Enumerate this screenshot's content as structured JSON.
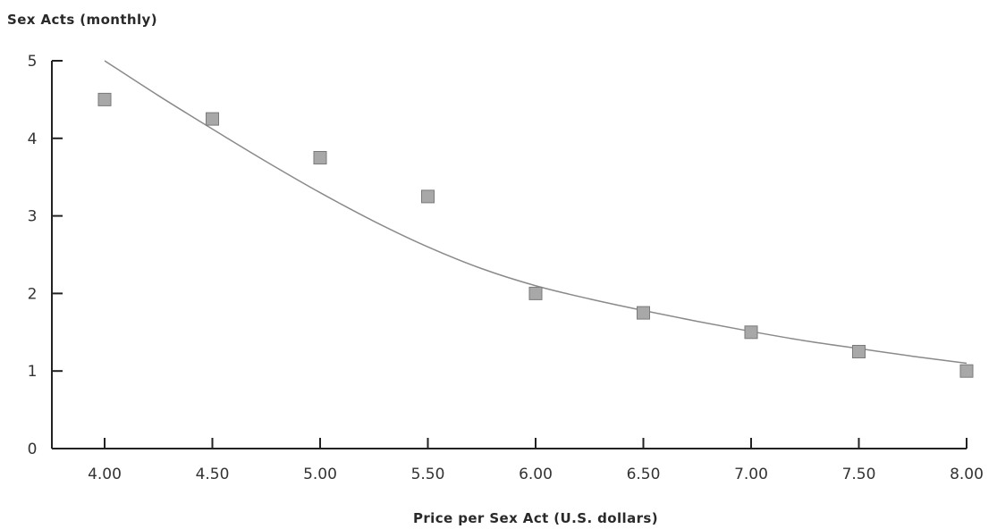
{
  "chart_data": {
    "type": "scatter",
    "title": "",
    "ylabel": "Sex Acts (monthly)",
    "xlabel": "Price per Sex Act (U.S. dollars)",
    "xlim": [
      4.0,
      8.0
    ],
    "ylim": [
      0,
      5
    ],
    "x_ticks": [
      4.0,
      4.5,
      5.0,
      5.5,
      6.0,
      6.5,
      7.0,
      7.5,
      8.0
    ],
    "x_tick_labels": [
      "4.00",
      "4.50",
      "5.00",
      "5.50",
      "6.00",
      "6.50",
      "7.00",
      "7.50",
      "8.00"
    ],
    "y_ticks": [
      0,
      1,
      2,
      3,
      4,
      5
    ],
    "y_tick_labels": [
      "0",
      "1",
      "2",
      "3",
      "4",
      "5"
    ],
    "grid": false,
    "series": [
      {
        "kind": "points",
        "x": [
          4.0,
          4.5,
          5.0,
          5.5,
          6.0,
          6.5,
          7.0,
          7.5,
          8.0
        ],
        "y": [
          4.5,
          4.25,
          3.75,
          3.25,
          2.0,
          1.75,
          1.5,
          1.25,
          1.0
        ]
      },
      {
        "kind": "trendline",
        "x": [
          4.0,
          4.25,
          4.5,
          4.75,
          5.0,
          5.25,
          5.5,
          5.75,
          6.0,
          6.25,
          6.5,
          6.75,
          7.0,
          7.25,
          7.5,
          7.75,
          8.0
        ],
        "y": [
          5.0,
          4.55,
          4.12,
          3.7,
          3.3,
          2.93,
          2.6,
          2.32,
          2.1,
          1.93,
          1.78,
          1.64,
          1.51,
          1.39,
          1.29,
          1.19,
          1.1
        ]
      }
    ],
    "colors": {
      "marker_fill": "#a8a8a8",
      "marker_stroke": "#7a7a7a",
      "trendline": "#8a8a8a",
      "axis": "#222222",
      "text": "#333333"
    }
  }
}
